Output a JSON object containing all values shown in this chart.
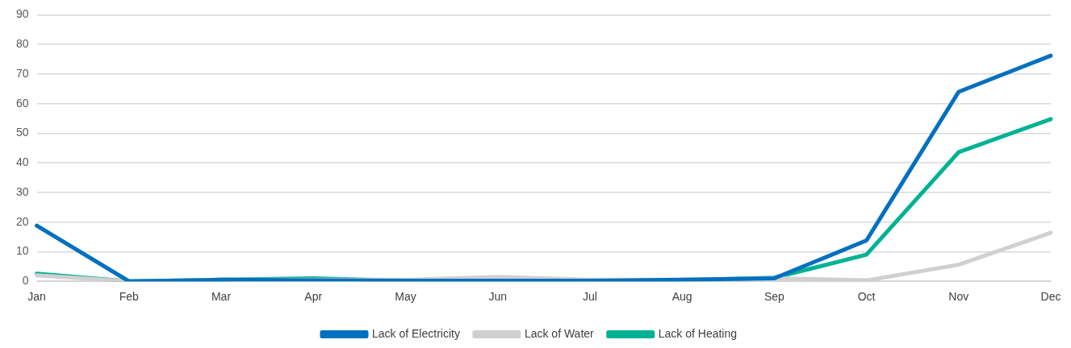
{
  "chart_data": {
    "type": "line",
    "categories": [
      "Jan",
      "Feb",
      "Mar",
      "Apr",
      "May",
      "Jun",
      "Jul",
      "Aug",
      "Sep",
      "Oct",
      "Nov",
      "Dec"
    ],
    "series": [
      {
        "name": "Lack of Electricity",
        "color": "#0070c0",
        "values": [
          18.8,
          0,
          0.5,
          0.3,
          0.2,
          0.2,
          0.2,
          0.5,
          1,
          13.8,
          64,
          76.2
        ]
      },
      {
        "name": "Lack of Water",
        "color": "#d0d0d0",
        "values": [
          2,
          0,
          0.5,
          null,
          0.5,
          1.5,
          0.5,
          0.5,
          1,
          0.3,
          5.6,
          16.4
        ]
      },
      {
        "name": "Lack of Heating",
        "color": "#00b294",
        "values": [
          2.6,
          0,
          0.5,
          1,
          0.2,
          0.2,
          0.2,
          0.3,
          1.2,
          9,
          43.6,
          54.8
        ]
      }
    ],
    "ylim": [
      0,
      90
    ],
    "yticks": [
      0,
      10,
      20,
      30,
      40,
      50,
      60,
      70,
      80,
      90
    ],
    "grid": "y",
    "legend": "bottom",
    "marker": "none",
    "line_style": "solid"
  }
}
